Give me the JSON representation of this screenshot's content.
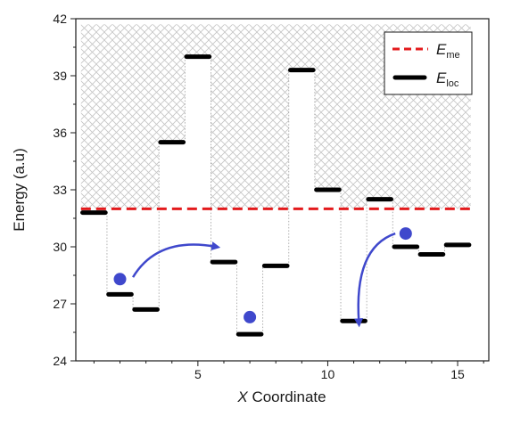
{
  "chart_data": {
    "type": "step",
    "xlabel_italic": "X",
    "xlabel_rest": " Coordinate",
    "ylabel": "Energy (a.u)",
    "xlim": [
      0.3,
      16.2
    ],
    "ylim": [
      24,
      42
    ],
    "xticks": [
      5,
      10,
      15
    ],
    "yticks": [
      24,
      27,
      30,
      33,
      36,
      39,
      42
    ],
    "x": [
      1,
      2,
      3,
      4,
      5,
      6,
      7,
      8,
      9,
      10,
      11,
      12,
      13,
      14,
      15
    ],
    "series": [
      {
        "name_main": "E",
        "name_sub": "me",
        "style": "dashed",
        "color": "#e31a1c",
        "x_range": [
          1,
          15
        ],
        "value": 32.0
      },
      {
        "name_main": "E",
        "name_sub": "loc",
        "style": "segments",
        "color": "#000000",
        "values": [
          31.8,
          27.5,
          26.7,
          35.5,
          40.0,
          29.2,
          25.4,
          29.0,
          39.3,
          33.0,
          26.1,
          32.5,
          30.0,
          29.6,
          30.1
        ]
      }
    ],
    "points": [
      {
        "x": 2.0,
        "y": 28.3
      },
      {
        "x": 7.0,
        "y": 26.3
      },
      {
        "x": 13.0,
        "y": 30.7
      }
    ],
    "arrows": [
      {
        "from": [
          2.5,
          28.4
        ],
        "to": [
          5.7,
          30.0
        ]
      },
      {
        "from": [
          12.6,
          30.7
        ],
        "to": [
          11.2,
          26.0
        ]
      }
    ],
    "legend_position": "top-right",
    "colors": {
      "accent": "#3f48cc",
      "dashed": "#e31a1c",
      "bars": "#000000",
      "hatch": "#c8c8c8"
    }
  }
}
